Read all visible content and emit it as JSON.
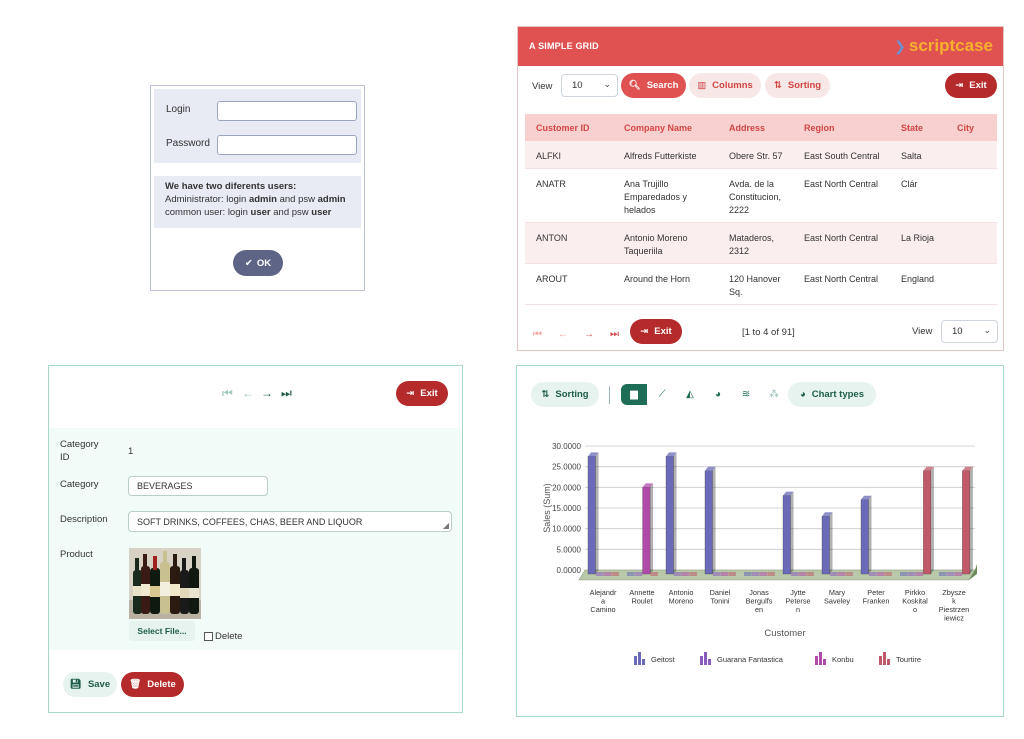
{
  "login": {
    "login_label": "Login",
    "password_label": "Password",
    "info_title": "We have two diferents users:",
    "admin_prefix": "Administrator: login ",
    "admin_login": "admin",
    "admin_mid": " and psw ",
    "admin_psw": "admin",
    "user_prefix": "common user: login ",
    "user_login": "user",
    "user_mid": " and psw ",
    "user_psw": "user",
    "ok_label": "OK"
  },
  "grid": {
    "title": "A SIMPLE GRID",
    "logo_text": "scriptcase",
    "view_label": "View",
    "view_value": "10",
    "search_label": "Search",
    "columns_label": "Columns",
    "sorting_label": "Sorting",
    "exit_label": "Exit",
    "columns": [
      "Customer ID",
      "Company Name",
      "Address",
      "Region",
      "State",
      "City"
    ],
    "rows": [
      [
        "ALFKI",
        "Alfreds Futterkiste",
        "Obere Str. 57",
        "East South Central",
        "Salta",
        ""
      ],
      [
        "ANATR",
        "Ana Trujillo Emparedados y helados",
        "Avda. de la Constitucion, 2222",
        "East North Central",
        "Clár",
        ""
      ],
      [
        "ANTON",
        "Antonio Moreno Taqueriila",
        "Mataderos, 2312",
        "East North Central",
        "La Rioja",
        ""
      ],
      [
        "AROUT",
        "Around the Horn",
        "120 Hanover Sq.",
        "East North Central",
        "England",
        ""
      ]
    ],
    "counter": "[1 to 4 of 91]",
    "footer_exit": "Exit",
    "footer_view_label": "View",
    "footer_view_value": "10"
  },
  "form": {
    "exit_label": "Exit",
    "category_id_label": "Category ID",
    "category_id_value": "1",
    "category_label": "Category",
    "category_value": "BEVERAGES",
    "description_label": "Description",
    "description_value": "SOFT DRINKS, COFFEES, CHAS, BEER AND LIQUOR",
    "product_label": "Product",
    "select_file_label": "Select File...",
    "delete_check_label": "Delete",
    "save_label": "Save",
    "delete_label": "Delete"
  },
  "chart_panel": {
    "sorting_label": "Sorting",
    "chart_types_label": "Chart types"
  },
  "chart_data": {
    "type": "bar",
    "title": "",
    "xlabel": "Customer",
    "ylabel": "Sales (Sum)",
    "ylim": [
      0,
      30
    ],
    "ytick_labels": [
      "0.0000",
      "5.0000",
      "10.0000",
      "15.0000",
      "20.0000",
      "25.0000",
      "30.0000"
    ],
    "categories": [
      "Alejandra Camino",
      "Annette Roulet",
      "Antonio Moreno",
      "Daniel Tonini",
      "Jonas Bergulfsen",
      "Jytte Petersen",
      "Mary Saveley",
      "Peter Franken",
      "Pirkko Koskitalo",
      "Zbyszek Piestrzeniewicz"
    ],
    "category_label_lines": [
      [
        "Alejandr",
        "a",
        "Camino"
      ],
      [
        "Annette",
        "Roulet"
      ],
      [
        "Antonio",
        "Moreno"
      ],
      [
        "Daniel",
        "Tonini"
      ],
      [
        "Jonas",
        "Bergulfs",
        "en"
      ],
      [
        "Jytte",
        "Peterse",
        "n"
      ],
      [
        "Mary",
        "Saveley"
      ],
      [
        "Peter",
        "Franken"
      ],
      [
        "Pirkko",
        "Koskital",
        "o"
      ],
      [
        "Zbysze",
        "k",
        "Piestrzen",
        "iewicz"
      ]
    ],
    "series": [
      {
        "name": "Geitost",
        "color": "#6a6ab8",
        "values": [
          27.5,
          0,
          27.5,
          24,
          0,
          18,
          13,
          17,
          0,
          0
        ]
      },
      {
        "name": "Guarana Fantastica",
        "color": "#8a5cc0",
        "values": [
          0,
          0,
          0,
          0,
          0,
          0,
          0,
          0,
          0,
          0
        ]
      },
      {
        "name": "Konbu",
        "color": "#b04aa8",
        "values": [
          0,
          20,
          0,
          0,
          0,
          0,
          0,
          0,
          0,
          0
        ]
      },
      {
        "name": "Tourtire",
        "color": "#c05a6a",
        "values": [
          0,
          0,
          0,
          0,
          0,
          0,
          0,
          0,
          24,
          24
        ]
      }
    ],
    "grid": true,
    "legend_position": "bottom"
  }
}
